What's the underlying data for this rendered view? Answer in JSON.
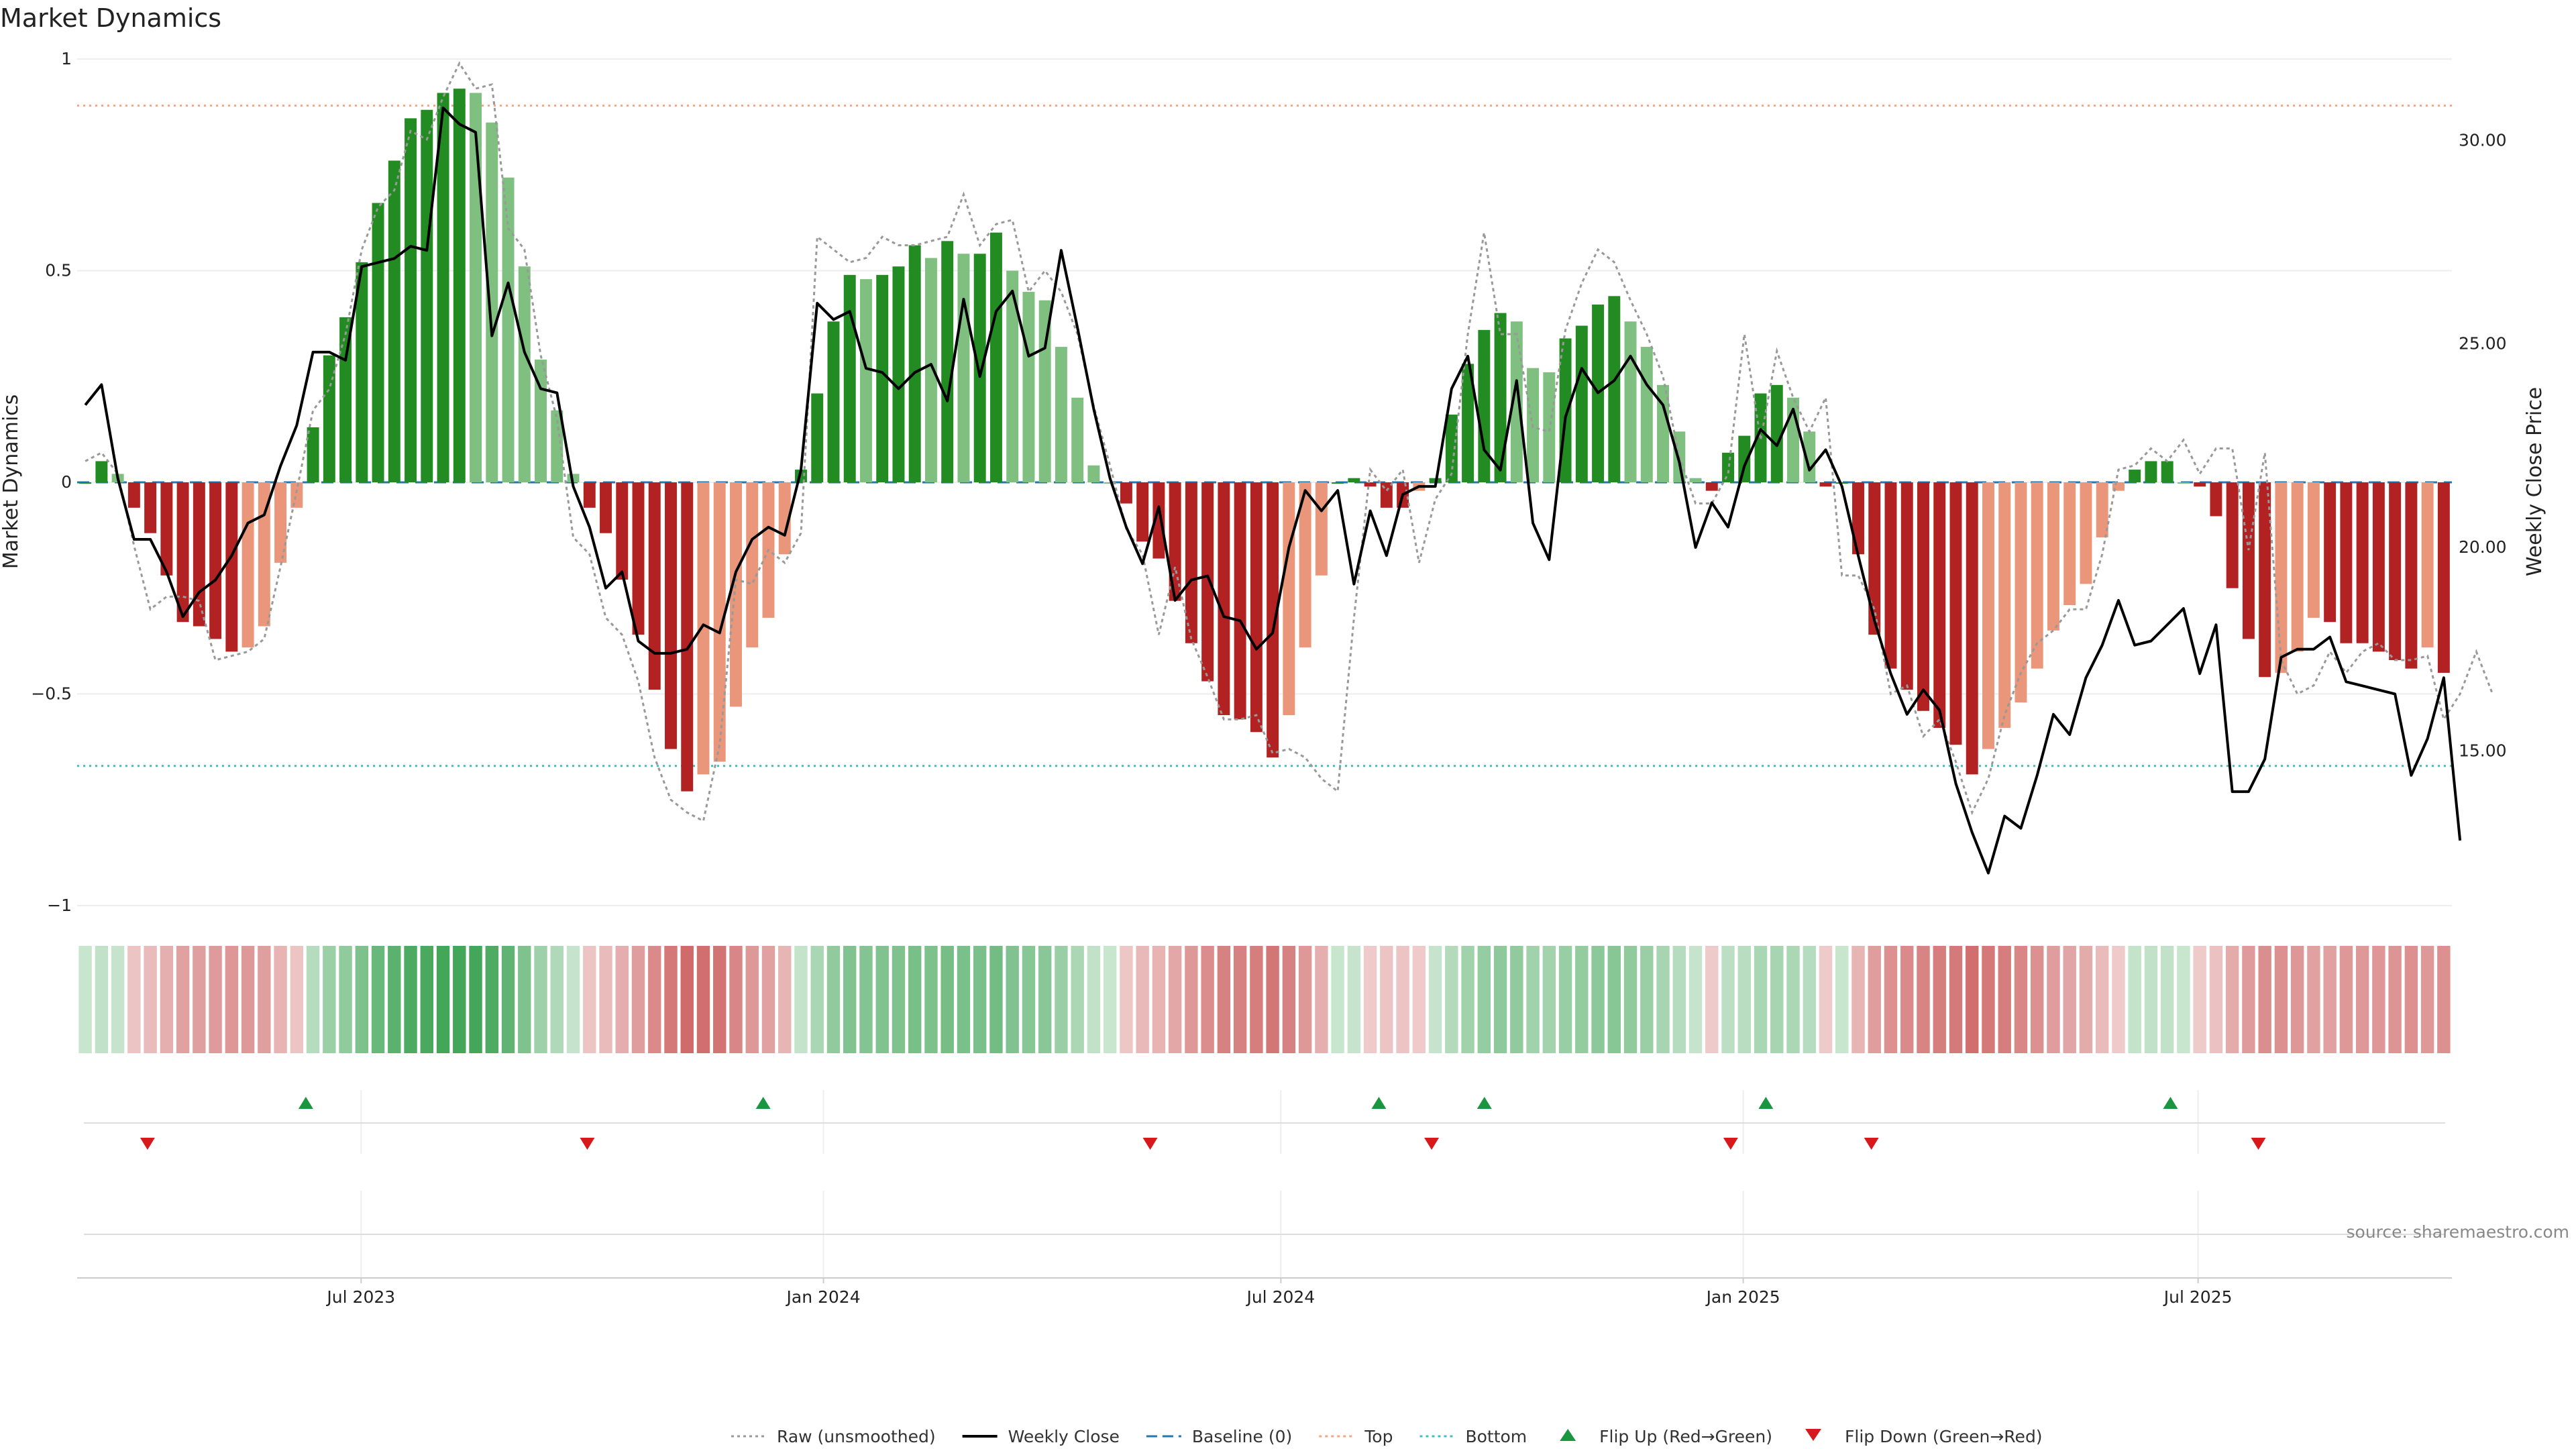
{
  "chart_data": {
    "type": "bar",
    "title": "Market Dynamics",
    "ylabel": "Market Dynamics",
    "y2label": "Weekly Close Price",
    "ylim": [
      -1,
      1
    ],
    "y2lim": [
      11.2,
      32.0
    ],
    "yticks": [
      {
        "v": 1,
        "t": "1"
      },
      {
        "v": 0.5,
        "t": "0.5"
      },
      {
        "v": 0,
        "t": "0"
      },
      {
        "v": -0.5,
        "t": "−0.5"
      },
      {
        "v": -1,
        "t": "−1"
      }
    ],
    "y2ticks": [
      {
        "v": 30,
        "t": "30.00"
      },
      {
        "v": 25,
        "t": "25.00"
      },
      {
        "v": 20,
        "t": "20.00"
      },
      {
        "v": 15,
        "t": "15.00"
      }
    ],
    "date_range": [
      "2023-03-10",
      "2025-10-10"
    ],
    "xticks": [
      {
        "date": "2023-07-01",
        "label": "Jul 2023"
      },
      {
        "date": "2024-01-01",
        "label": "Jan 2024"
      },
      {
        "date": "2024-07-01",
        "label": "Jul 2024"
      },
      {
        "date": "2025-01-01",
        "label": "Jan 2025"
      },
      {
        "date": "2025-07-01",
        "label": "Jul 2025"
      }
    ],
    "top_level": 0.89,
    "bottom_level": -0.67,
    "colors": {
      "strong_green": "#228b22",
      "weak_green": "#7fbf7f",
      "strong_red": "#b22222",
      "weak_red": "#e9967a",
      "weekly_close": "#000000",
      "raw": "#999999",
      "baseline": "#1f77b4",
      "top": "#f4a582",
      "bottom": "#3fbfbf",
      "flip_up": "#1a9641",
      "flip_down": "#d7191c"
    },
    "series": [
      {
        "name": "Weekly Close",
        "values": [
          23.5,
          24.0,
          21.7,
          20.2,
          20.2,
          19.4,
          18.3,
          18.9,
          19.2,
          19.8,
          20.6,
          20.8,
          22.0,
          23.0,
          24.8,
          24.8,
          24.6,
          26.9,
          27.0,
          27.1,
          27.4,
          27.3,
          30.8,
          30.4,
          30.2,
          25.2,
          26.5,
          24.8,
          23.9,
          23.8,
          21.5,
          20.5,
          19.0,
          19.4,
          17.7,
          17.4,
          17.4,
          17.5,
          18.1,
          17.9,
          19.4,
          20.2,
          20.5,
          20.3,
          21.9,
          26.0,
          25.6,
          25.8,
          24.4,
          24.3,
          23.9,
          24.3,
          24.5,
          23.6,
          26.1,
          24.2,
          25.8,
          26.3,
          24.7,
          24.9,
          27.3,
          25.4,
          23.4,
          21.7,
          20.5,
          19.6,
          21.0,
          18.7,
          19.2,
          19.3,
          18.3,
          18.2,
          17.5,
          17.9,
          20.0,
          21.4,
          20.9,
          21.4,
          19.1,
          20.9,
          19.8,
          21.3,
          21.5,
          21.5,
          23.9,
          24.7,
          22.4,
          21.9,
          24.1,
          20.6,
          19.7,
          23.2,
          24.4,
          23.8,
          24.1,
          24.7,
          24.0,
          23.5,
          22.1,
          20.0,
          21.1,
          20.5,
          22.0,
          22.9,
          22.5,
          23.4,
          21.9,
          22.4,
          21.5,
          19.8,
          18.2,
          16.9,
          15.9,
          16.5,
          16.0,
          14.2,
          13.0,
          12.0,
          13.4,
          13.1,
          14.4,
          15.9,
          15.4,
          16.8,
          17.6,
          18.7,
          17.6,
          17.7,
          18.1,
          18.5,
          16.9,
          18.1,
          14.0,
          14.0,
          14.8,
          17.3,
          17.5,
          17.5,
          17.8,
          16.7,
          16.6,
          16.5,
          16.4,
          14.4,
          15.3,
          16.8,
          12.8
        ]
      },
      {
        "name": "Raw (unsmoothed)",
        "values": [
          0.05,
          0.07,
          0.02,
          -0.15,
          -0.3,
          -0.27,
          -0.27,
          -0.28,
          -0.42,
          -0.41,
          -0.4,
          -0.37,
          -0.2,
          -0.02,
          0.17,
          0.22,
          0.35,
          0.55,
          0.65,
          0.69,
          0.83,
          0.81,
          0.91,
          0.99,
          0.93,
          0.94,
          0.6,
          0.55,
          0.3,
          0.15,
          -0.13,
          -0.17,
          -0.32,
          -0.36,
          -0.47,
          -0.65,
          -0.75,
          -0.78,
          -0.8,
          -0.62,
          -0.23,
          -0.24,
          -0.16,
          -0.19,
          -0.12,
          0.58,
          0.55,
          0.52,
          0.53,
          0.58,
          0.56,
          0.56,
          0.57,
          0.58,
          0.68,
          0.56,
          0.61,
          0.62,
          0.45,
          0.5,
          0.45,
          0.35,
          0.18,
          0.04,
          -0.11,
          -0.17,
          -0.36,
          -0.2,
          -0.37,
          -0.46,
          -0.56,
          -0.56,
          -0.55,
          -0.64,
          -0.63,
          -0.65,
          -0.7,
          -0.73,
          -0.32,
          0.03,
          -0.02,
          0.03,
          -0.19,
          -0.04,
          0.02,
          0.35,
          0.59,
          0.35,
          0.35,
          0.13,
          0.12,
          0.36,
          0.47,
          0.55,
          0.52,
          0.43,
          0.35,
          0.25,
          0.06,
          -0.05,
          -0.05,
          0.02,
          0.35,
          0.1,
          0.31,
          0.2,
          0.12,
          0.2,
          -0.22,
          -0.22,
          -0.3,
          -0.5,
          -0.48,
          -0.6,
          -0.56,
          -0.66,
          -0.78,
          -0.7,
          -0.55,
          -0.45,
          -0.38,
          -0.35,
          -0.3,
          -0.3,
          -0.17,
          0.03,
          0.04,
          0.08,
          0.05,
          0.1,
          0.02,
          0.08,
          0.08,
          -0.16,
          0.07,
          -0.42,
          -0.5,
          -0.48,
          -0.4,
          -0.45,
          -0.4,
          -0.38,
          -0.42,
          -0.42,
          -0.41,
          -0.56,
          -0.5,
          -0.4,
          -0.5
        ]
      },
      {
        "name": "Market Dynamics",
        "values": [
          0.0,
          0.05,
          0.02,
          -0.06,
          -0.12,
          -0.22,
          -0.33,
          -0.34,
          -0.37,
          -0.4,
          -0.39,
          -0.34,
          -0.19,
          -0.06,
          0.13,
          0.3,
          0.39,
          0.52,
          0.66,
          0.76,
          0.86,
          0.88,
          0.92,
          0.93,
          0.92,
          0.85,
          0.72,
          0.51,
          0.29,
          0.17,
          0.02,
          -0.06,
          -0.12,
          -0.23,
          -0.36,
          -0.49,
          -0.63,
          -0.73,
          -0.69,
          -0.66,
          -0.53,
          -0.39,
          -0.32,
          -0.17,
          0.03,
          0.21,
          0.38,
          0.49,
          0.48,
          0.49,
          0.51,
          0.56,
          0.53,
          0.57,
          0.54,
          0.54,
          0.59,
          0.5,
          0.45,
          0.43,
          0.32,
          0.2,
          0.04,
          0.0,
          -0.05,
          -0.14,
          -0.18,
          -0.28,
          -0.38,
          -0.47,
          -0.55,
          -0.56,
          -0.59,
          -0.65,
          -0.55,
          -0.39,
          -0.22,
          0.0,
          0.01,
          -0.01,
          -0.06,
          -0.06,
          -0.02,
          0.01,
          0.16,
          0.28,
          0.36,
          0.4,
          0.38,
          0.27,
          0.26,
          0.34,
          0.37,
          0.42,
          0.44,
          0.38,
          0.32,
          0.23,
          0.12,
          0.01,
          -0.02,
          0.07,
          0.11,
          0.21,
          0.23,
          0.2,
          0.12,
          -0.01,
          0.0,
          -0.17,
          -0.36,
          -0.44,
          -0.49,
          -0.54,
          -0.58,
          -0.62,
          -0.69,
          -0.63,
          -0.58,
          -0.52,
          -0.44,
          -0.35,
          -0.29,
          -0.24,
          -0.13,
          -0.02,
          0.03,
          0.05,
          0.05,
          0.0,
          -0.01,
          -0.08,
          -0.25,
          -0.37,
          -0.46,
          -0.45,
          -0.4,
          -0.32,
          -0.33,
          -0.38,
          -0.38,
          -0.4,
          -0.42,
          -0.44,
          -0.39,
          -0.45
        ]
      },
      {
        "name": "Flip Up (Red→Green)",
        "values": [
          "2023-06-09",
          "2023-12-08",
          "2024-08-09",
          "2024-09-20",
          "2025-01-10",
          "2025-06-20"
        ]
      },
      {
        "name": "Flip Down (Green→Red)",
        "values": [
          "2023-04-07",
          "2023-09-29",
          "2024-05-10",
          "2024-08-30",
          "2024-12-27",
          "2025-02-21",
          "2025-07-25"
        ]
      }
    ],
    "legend": {
      "position": "bottom-center",
      "entries": [
        {
          "label": "Raw (unsmoothed)",
          "style": "dotted",
          "color": "#999999"
        },
        {
          "label": "Weekly Close",
          "style": "solid",
          "color": "#000000"
        },
        {
          "label": "Baseline (0)",
          "style": "dashed",
          "color": "#1f77b4"
        },
        {
          "label": "Top",
          "style": "dotted",
          "color": "#f4a582"
        },
        {
          "label": "Bottom",
          "style": "dotted",
          "color": "#3fbfbf"
        },
        {
          "label": "Flip Up (Red→Green)",
          "style": "triangle-up",
          "color": "#1a9641"
        },
        {
          "label": "Flip Down (Green→Red)",
          "style": "triangle-down",
          "color": "#d7191c"
        }
      ]
    },
    "source": "source: sharemaestro.com"
  }
}
